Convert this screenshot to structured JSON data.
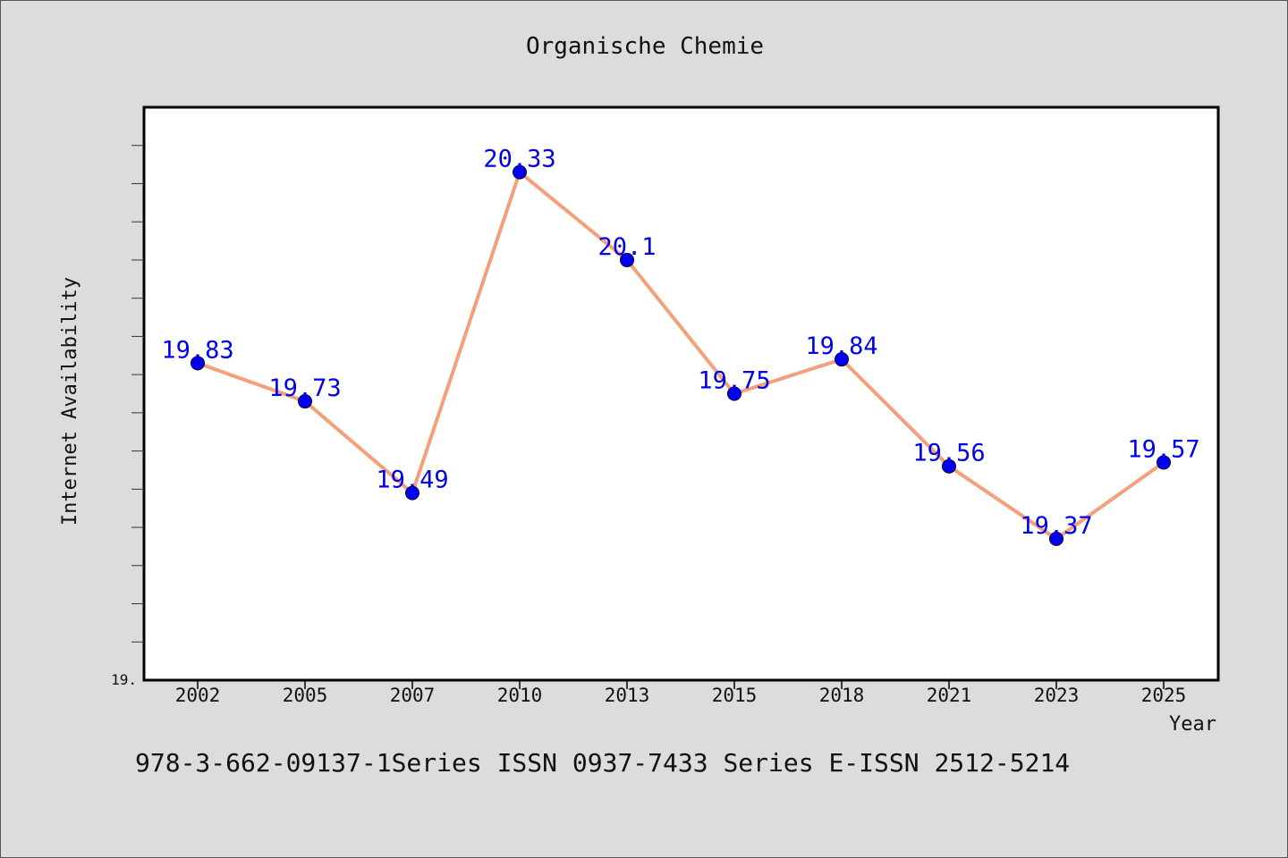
{
  "chart_data": {
    "type": "line",
    "title": "Organische Chemie",
    "xlabel": "Year",
    "ylabel": "Internet Availability",
    "categories": [
      "2002",
      "2005",
      "2007",
      "2010",
      "2013",
      "2015",
      "2018",
      "2021",
      "2023",
      "2025"
    ],
    "series": [
      {
        "values": [
          19.83,
          19.73,
          19.49,
          20.33,
          20.1,
          19.75,
          19.84,
          19.56,
          19.37,
          19.57
        ]
      }
    ],
    "data_labels": [
      "19.83",
      "19.73",
      "19.49",
      "20.33",
      "20.1",
      "19.75",
      "19.84",
      "19.56",
      "19.37",
      "19.57"
    ],
    "y_tick_label": "19.",
    "ylim": [
      19.0,
      20.5
    ],
    "grid": false,
    "colors": {
      "line": "#f4a07a",
      "marker": "#0000ee",
      "labels": "#0000ee",
      "background": "#dcdcdc",
      "plot_bg": "#ffffff"
    }
  },
  "footer": {
    "text": "978-3-662-09137-1Series ISSN 0937-7433 Series E-ISSN 2512-5214"
  }
}
